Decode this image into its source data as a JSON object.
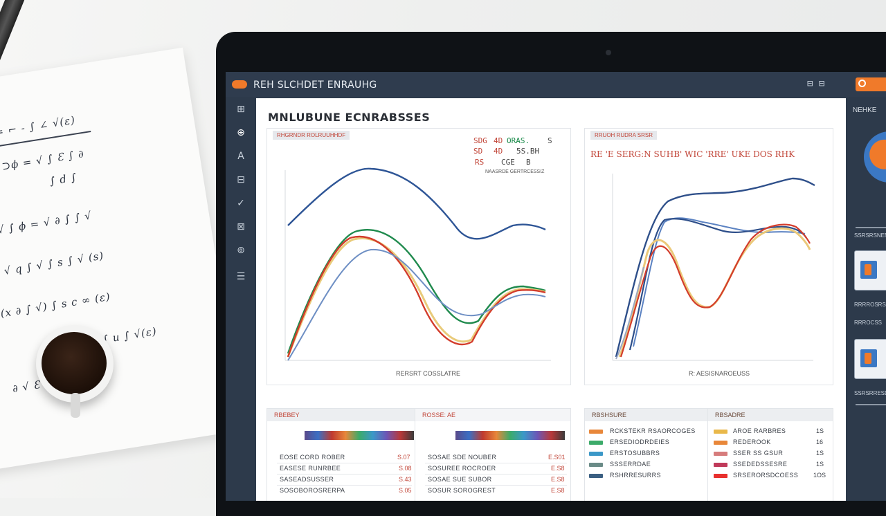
{
  "app": {
    "title": "REH SLCHDET ENRAUHG",
    "top_icons": "⊟ ⊟"
  },
  "sidebar": {
    "items": [
      {
        "icon": "dashboard-icon",
        "glyph": "⊞"
      },
      {
        "icon": "reports-icon",
        "glyph": "⊕"
      },
      {
        "icon": "text-icon",
        "glyph": "A"
      },
      {
        "icon": "layers-icon",
        "glyph": "⊟"
      },
      {
        "icon": "check-icon",
        "glyph": "✓"
      },
      {
        "icon": "network-icon",
        "glyph": "⊠"
      },
      {
        "icon": "settings-icon",
        "glyph": "⊚"
      },
      {
        "icon": "menu-icon",
        "glyph": "☰"
      }
    ]
  },
  "main": {
    "title": "MNLUBUNE ECNRABSSES",
    "chart_left": {
      "tag": "RHGRNDR ROLRUUHHDF",
      "legend": {
        "row1": {
          "a": "SDG",
          "b": "4D",
          "c": "ORAS.",
          "d": "S"
        },
        "row2": {
          "a": "SD",
          "b": "4D",
          "c": "5S.BH"
        },
        "row3": {
          "a": "RS",
          "b": "CGE",
          "c": "B"
        },
        "note": "NAASRDE GERTRCESSIZ"
      },
      "caption": "RERSRT COSSLATRE"
    },
    "chart_right": {
      "tag": "RRUOH RUDRA SRSR",
      "header": "RE 'E SERG:N SUHB' WIC 'RRE' UKE DOS RHK",
      "caption": "R: AESISNAROEUSS"
    },
    "tables": {
      "t1": {
        "head": "RBEBEY",
        "rows": [
          {
            "label": "EOSE CORD ROBER",
            "value": "S.07"
          },
          {
            "label": "EASESE RUNRBEE",
            "value": "S.08"
          },
          {
            "label": "SASEADSUSSER",
            "value": "S.43"
          },
          {
            "label": "SOSOBOROSRERPA",
            "value": "S.05"
          }
        ]
      },
      "t2": {
        "head": "ROSSE: AE",
        "rows": [
          {
            "label": "SOSAE SDE NOUBER",
            "value": "E.S01"
          },
          {
            "label": "SOSUREE ROCROER",
            "value": "E.S8"
          },
          {
            "label": "SOSAE SUE SUBOR",
            "value": "E.S8"
          },
          {
            "label": "SOSUR SOROGREST",
            "value": "E.S8"
          }
        ]
      },
      "t3": {
        "head": "RBSHSURE",
        "rows": [
          {
            "label": "RCKSTEKR RSAORCOGES",
            "color": "#e8873a"
          },
          {
            "label": "ERSEDIODRDEIES",
            "color": "#3cab6a"
          },
          {
            "label": "ERSTOSUBBRS",
            "color": "#3b98c8"
          },
          {
            "label": "SSSERRDAE",
            "color": "#6a8b87"
          },
          {
            "label": "RSHRRESURRS",
            "color": "#3b5f82"
          }
        ]
      },
      "t4": {
        "head": "RBSADRE",
        "rows": [
          {
            "label": "AROE RARBRES",
            "value": "1S",
            "color": "#e9b84a"
          },
          {
            "label": "REDEROOK",
            "value": "16",
            "color": "#e8873a"
          },
          {
            "label": "SSER SS GSUR",
            "value": "1S",
            "color": "#d67c7c"
          },
          {
            "label": "SSEDEDSSESRE",
            "value": "1S",
            "color": "#c03a5a"
          },
          {
            "label": "SRSERORSDCOESS",
            "value": "1OS",
            "color": "#e8302e"
          }
        ]
      }
    }
  },
  "right_panel": {
    "head": "NEHKE",
    "labels": [
      "SSRSRSNENSCBS",
      "RRRROSRS",
      "RRROCSS",
      "SSRSRRESDE"
    ]
  },
  "notepad": {
    "lines": [
      "√ q = ⌐ - ∫ ∠ √(ε)",
      "θ ≈ ⊃ϕ = √ ∫ Ɛ ∫ ∂",
      "∫ d ∫",
      "∂ √ ∫ ϕ = √ ∂ ∫ ∫ √",
      "∂ √ q ∫ √ ∫ s ∫ √ (s)",
      "(x ∂ ∫ √) ∫ s c ∞ (ε)",
      "∫ u ∫ √(ε)",
      "∂ √ Ɛ √ ∫"
    ]
  }
}
